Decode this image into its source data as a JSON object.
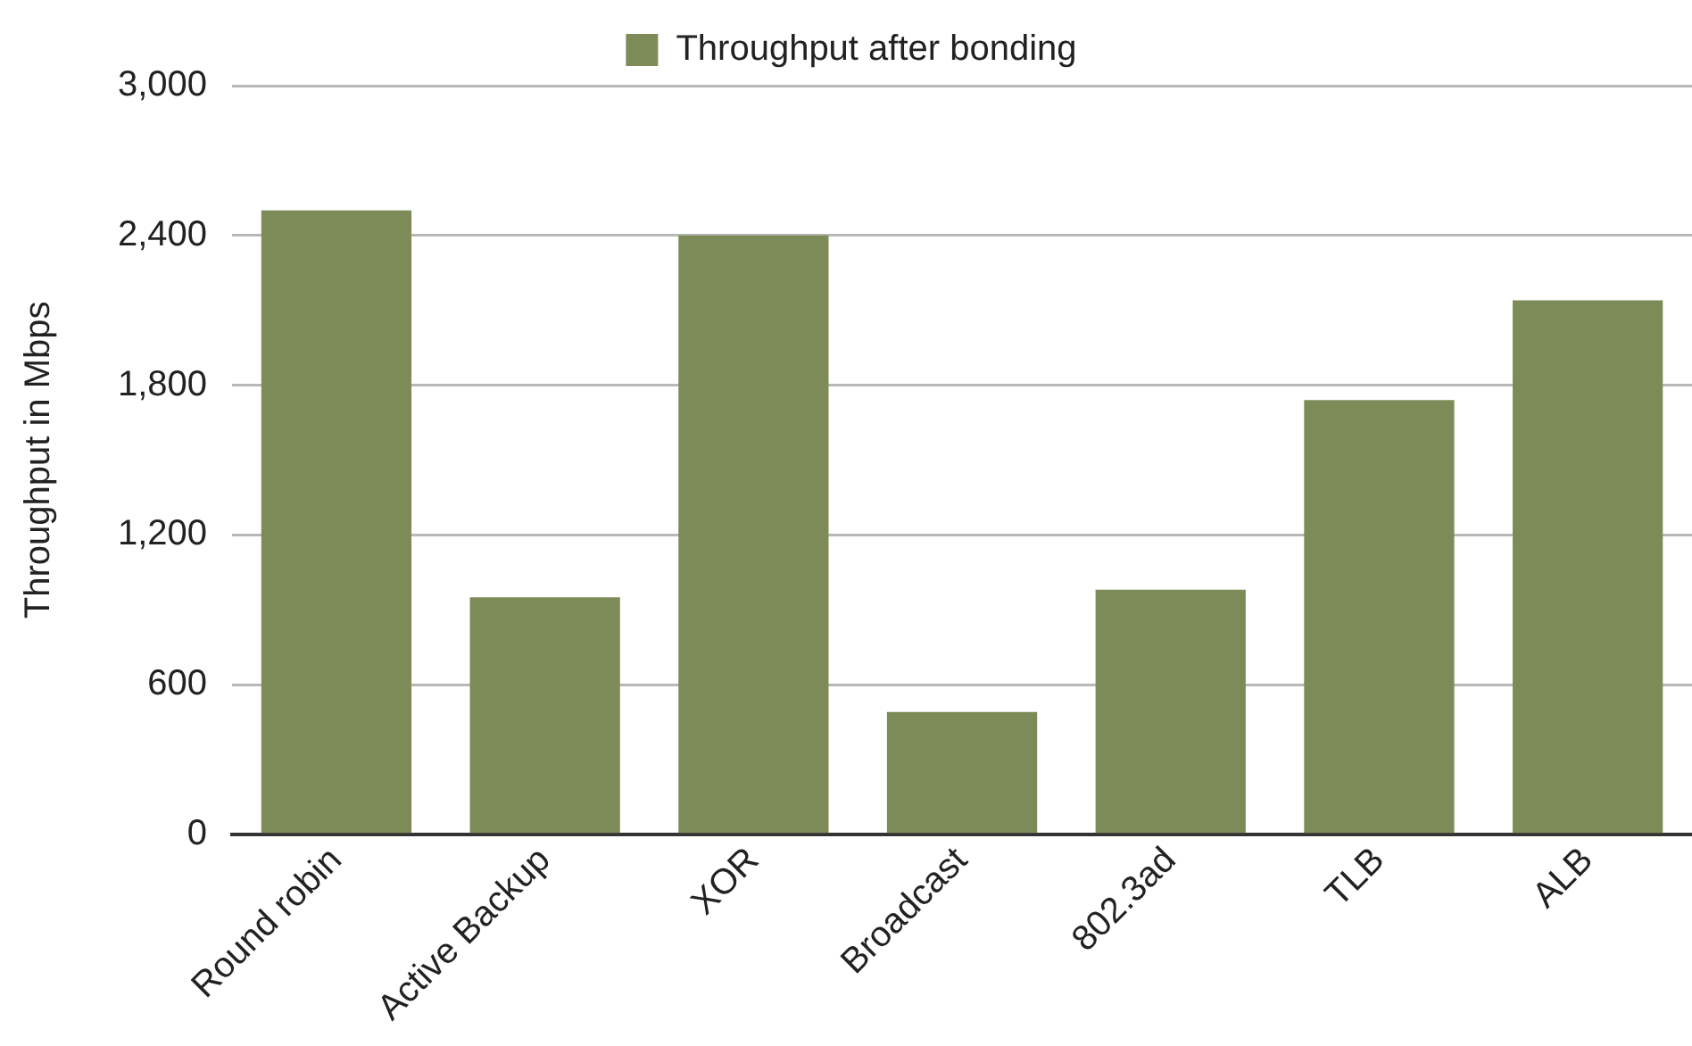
{
  "chart_data": {
    "type": "bar",
    "ylabel": "Throughput in Mbps",
    "categories": [
      "Round robin",
      "Active Backup",
      "XOR",
      "Broadcast",
      "802.3ad",
      "TLB",
      "ALB"
    ],
    "series": [
      {
        "name": "Throughput after bonding",
        "color": "#7d8b59",
        "values": [
          2500,
          950,
          2400,
          490,
          980,
          1740,
          2140
        ]
      }
    ],
    "ylim": [
      0,
      3000
    ],
    "yticks": [
      0,
      600,
      {
        "value": 1200,
        "label": "1,200"
      },
      {
        "value": 1800,
        "label": "1,800"
      },
      {
        "value": 2400,
        "label": "2,400"
      },
      {
        "value": 3000,
        "label": "3,000"
      }
    ],
    "grid": "y",
    "legend": "top"
  }
}
